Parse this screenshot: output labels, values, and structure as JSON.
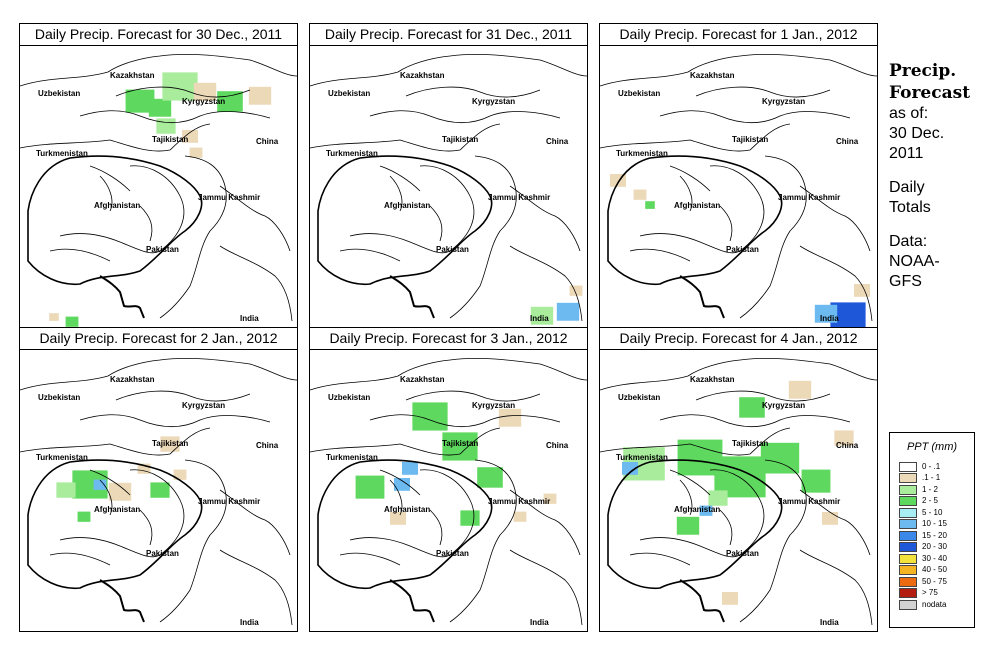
{
  "panels": [
    {
      "title": "Daily Precip. Forecast for  30 Dec., 2011",
      "rain": [
        [
          "a",
          120,
          58,
          18
        ],
        [
          "a",
          140,
          64,
          14
        ],
        [
          "c",
          160,
          44,
          22
        ],
        [
          "b",
          185,
          48,
          14
        ],
        [
          "a",
          210,
          58,
          16
        ],
        [
          "b",
          240,
          52,
          14
        ],
        [
          "c",
          146,
          82,
          12
        ],
        [
          "b",
          170,
          92,
          10
        ],
        [
          "b",
          176,
          108,
          8
        ],
        [
          "a",
          52,
          277,
          8
        ],
        [
          "b",
          34,
          272,
          6
        ]
      ]
    },
    {
      "title": "Daily Precip. Forecast for  31 Dec., 2011",
      "rain": [
        [
          "d",
          258,
          268,
          14
        ],
        [
          "c",
          232,
          272,
          14
        ],
        [
          "b",
          266,
          246,
          8
        ]
      ]
    },
    {
      "title": "Daily Precip. Forecast for  1 Jan., 2012",
      "rain": [
        [
          "e",
          248,
          274,
          22
        ],
        [
          "d",
          226,
          270,
          14
        ],
        [
          "b",
          262,
          246,
          10
        ],
        [
          "b",
          18,
          136,
          10
        ],
        [
          "b",
          40,
          150,
          8
        ],
        [
          "a",
          50,
          160,
          6
        ]
      ]
    },
    {
      "title": "Daily Precip. Forecast for  2 Jan., 2012",
      "rain": [
        [
          "a",
          70,
          138,
          22
        ],
        [
          "d",
          80,
          136,
          8
        ],
        [
          "c",
          46,
          142,
          12
        ],
        [
          "b",
          100,
          144,
          14
        ],
        [
          "a",
          140,
          142,
          12
        ],
        [
          "b",
          150,
          96,
          12
        ],
        [
          "b",
          124,
          120,
          8
        ],
        [
          "b",
          160,
          126,
          8
        ],
        [
          "a",
          64,
          168,
          8
        ]
      ]
    },
    {
      "title": "Daily Precip. Forecast for  3 Jan., 2012",
      "rain": [
        [
          "a",
          120,
          70,
          22
        ],
        [
          "a",
          150,
          100,
          22
        ],
        [
          "d",
          100,
          120,
          10
        ],
        [
          "d",
          92,
          136,
          10
        ],
        [
          "a",
          60,
          140,
          18
        ],
        [
          "a",
          180,
          130,
          16
        ],
        [
          "b",
          88,
          170,
          10
        ],
        [
          "a",
          160,
          170,
          12
        ],
        [
          "b",
          210,
          168,
          8
        ],
        [
          "b",
          240,
          150,
          8
        ],
        [
          "b",
          200,
          70,
          14
        ]
      ]
    },
    {
      "title": "Daily Precip. Forecast for  4 Jan., 2012",
      "rain": [
        [
          "c",
          44,
          118,
          26
        ],
        [
          "d",
          30,
          120,
          10
        ],
        [
          "a",
          100,
          112,
          28
        ],
        [
          "a",
          140,
          132,
          32
        ],
        [
          "a",
          180,
          112,
          24
        ],
        [
          "a",
          216,
          134,
          18
        ],
        [
          "c",
          118,
          150,
          12
        ],
        [
          "d",
          106,
          162,
          8
        ],
        [
          "a",
          88,
          178,
          14
        ],
        [
          "b",
          244,
          90,
          12
        ],
        [
          "a",
          152,
          60,
          16
        ],
        [
          "b",
          200,
          42,
          14
        ],
        [
          "b",
          230,
          170,
          10
        ],
        [
          "b",
          130,
          250,
          10
        ]
      ]
    }
  ],
  "labels": {
    "uzbekistan": "Uzbekistan",
    "kazakhstan": "Kazakhstan",
    "kyrgyzstan": "Kyrgyzstan",
    "tajikistan": "Tajikistan",
    "turkmenistan": "Turkmenistan",
    "china": "China",
    "afghanistan": "Afghanistan",
    "jammu": "Jammu Kashmir",
    "pakistan": "Pakistan",
    "india": "India"
  },
  "sidebar": {
    "header1": "Precip.",
    "header2": "Forecast",
    "as_of": "as of:",
    "date1": "30 Dec.",
    "date2": "2011",
    "daily": "Daily",
    "totals": "Totals",
    "data_label": "Data:",
    "source1": "NOAA-",
    "source2": "GFS"
  },
  "legend": {
    "title": "PPT (mm)",
    "items": [
      {
        "label": "0 - .1",
        "color": "#ffffff"
      },
      {
        "label": ".1 - 1",
        "color": "#ecd9b8"
      },
      {
        "label": "1 - 2",
        "color": "#a8ec9c"
      },
      {
        "label": "2 - 5",
        "color": "#5ed85e"
      },
      {
        "label": "5 - 10",
        "color": "#a8ecf4"
      },
      {
        "label": "10 - 15",
        "color": "#6cbaf0"
      },
      {
        "label": "15 - 20",
        "color": "#3a88ea"
      },
      {
        "label": "20 - 30",
        "color": "#1e58d8"
      },
      {
        "label": "30 - 40",
        "color": "#f4e23c"
      },
      {
        "label": "40 - 50",
        "color": "#f4b424"
      },
      {
        "label": "50 - 75",
        "color": "#ec6a10"
      },
      {
        "label": "> 75",
        "color": "#b41e10"
      },
      {
        "label": "nodata",
        "color": "#d2d2d2"
      }
    ]
  }
}
